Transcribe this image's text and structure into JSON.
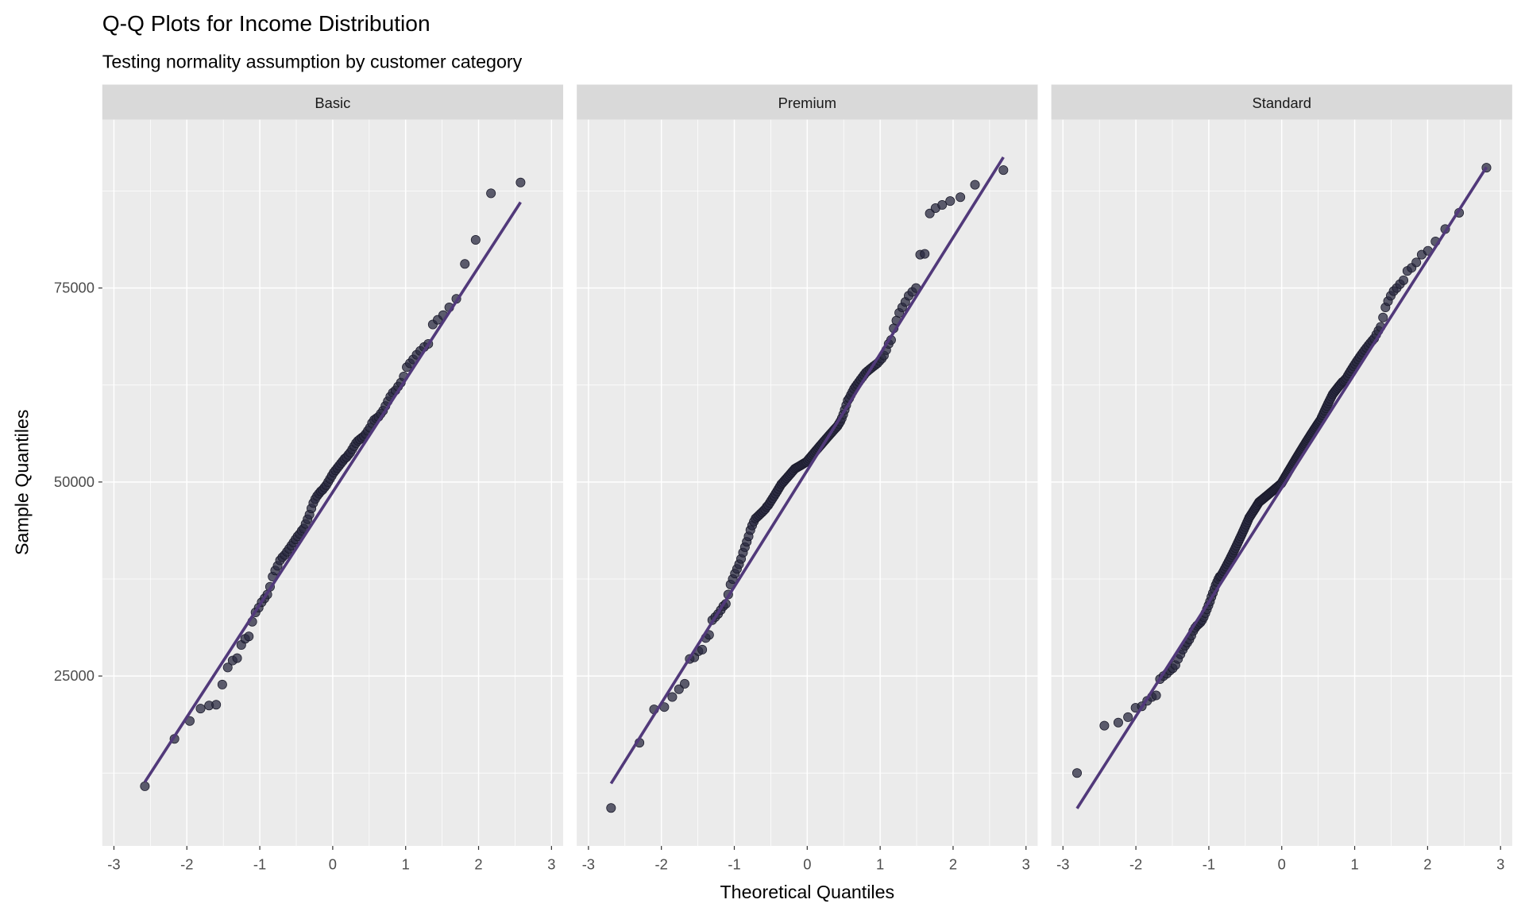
{
  "chart_data": {
    "type": "scatter",
    "title": "Q-Q Plots for Income Distribution",
    "subtitle": "Testing normality assumption by customer category",
    "xlabel": "Theoretical Quantiles",
    "ylabel": "Sample Quantiles",
    "xlim": [
      -3.16,
      3.16
    ],
    "ylim": [
      3100,
      96700
    ],
    "x_ticks": [
      -3,
      -2,
      -1,
      0,
      1,
      2,
      3
    ],
    "x_tick_labels": [
      "-3",
      "-2",
      "-1",
      "0",
      "1",
      "2",
      "3"
    ],
    "y_ticks": [
      25000,
      50000,
      75000
    ],
    "y_tick_labels": [
      "25000",
      "50000",
      "75000"
    ],
    "grid": true,
    "colors": {
      "panel_bg": "#EBEBEB",
      "strip_bg": "#D9D9D9",
      "grid": "#FFFFFF",
      "point": "#2A2A40",
      "line": "#51397A"
    },
    "facets": [
      {
        "name": "Basic",
        "line": {
          "intercept": 48700,
          "slope": 14500
        },
        "sample": [
          10800,
          16900,
          19200,
          20800,
          21200,
          21300,
          23900,
          26100,
          27000,
          27300,
          29000,
          29800,
          30100,
          32000,
          33200,
          33800,
          34500,
          35000,
          35500,
          36500,
          37800,
          38600,
          39200,
          39900,
          40300,
          40600,
          41000,
          41400,
          41800,
          42200,
          42600,
          43000,
          43300,
          43700,
          44000,
          44600,
          45200,
          45800,
          46600,
          47300,
          47800,
          48200,
          48500,
          48800,
          49000,
          49300,
          49600,
          50000,
          50400,
          50800,
          51200,
          51500,
          51800,
          52100,
          52400,
          52700,
          53000,
          53200,
          53500,
          53800,
          54200,
          54600,
          55000,
          55300,
          55500,
          55700,
          55900,
          56200,
          56600,
          57000,
          57600,
          58000,
          58200,
          58400,
          58800,
          59200,
          59800,
          60400,
          61000,
          61500,
          61800,
          62300,
          62800,
          63600,
          64800,
          65300,
          65800,
          66400,
          66900,
          67400,
          67800,
          70300,
          70900,
          71500,
          72500,
          73600,
          78100,
          81200,
          87200,
          88600
        ]
      },
      {
        "name": "Premium",
        "line": {
          "intercept": 51500,
          "slope": 15000
        },
        "sample": [
          8000,
          16400,
          20700,
          21000,
          22300,
          23300,
          24000,
          27200,
          27400,
          28200,
          28400,
          29900,
          30300,
          32200,
          32600,
          33000,
          33500,
          34000,
          34300,
          35500,
          36800,
          37500,
          38200,
          38800,
          39400,
          40100,
          40900,
          41600,
          42300,
          43000,
          43800,
          44400,
          44900,
          45300,
          45500,
          45700,
          45900,
          46100,
          46300,
          46500,
          46800,
          47000,
          47300,
          47600,
          47900,
          48200,
          48500,
          48800,
          49100,
          49400,
          49700,
          49900,
          50100,
          50300,
          50500,
          50700,
          50900,
          51100,
          51300,
          51500,
          51700,
          51800,
          51900,
          52000,
          52100,
          52200,
          52300,
          52400,
          52500,
          52600,
          52800,
          53000,
          53200,
          53400,
          53600,
          53800,
          54000,
          54200,
          54400,
          54600,
          54800,
          55000,
          55200,
          55400,
          55600,
          55800,
          56000,
          56200,
          56400,
          56600,
          56800,
          57000,
          57200,
          57500,
          57800,
          58200,
          58700,
          59300,
          59900,
          60500,
          60800,
          61200,
          61600,
          62000,
          62300,
          62600,
          62900,
          63200,
          63500,
          63800,
          64100,
          64300,
          64500,
          64700,
          64900,
          65100,
          65300,
          65600,
          65900,
          66300,
          67000,
          67800,
          68300,
          69800,
          70800,
          71800,
          72500,
          73200,
          74000,
          74500,
          75000,
          79300,
          79400,
          84600,
          85300,
          85700,
          86200,
          86700,
          88300,
          90200
        ]
      },
      {
        "name": "Standard",
        "line": {
          "intercept": 49250,
          "slope": 14720
        },
        "sample": [
          12500,
          18600,
          19000,
          19700,
          20900,
          21100,
          21800,
          22300,
          22500,
          24600,
          25000,
          25300,
          25700,
          26000,
          26400,
          27200,
          27800,
          28400,
          28900,
          29300,
          29700,
          30200,
          30800,
          31200,
          31500,
          31700,
          31900,
          32200,
          32600,
          33100,
          33600,
          34100,
          34600,
          35200,
          35700,
          36200,
          36700,
          37100,
          37500,
          37800,
          37900,
          38200,
          38500,
          38800,
          39100,
          39400,
          39700,
          40000,
          40300,
          40600,
          40900,
          41200,
          41500,
          41800,
          42100,
          42400,
          42700,
          43000,
          43300,
          43600,
          43900,
          44200,
          44500,
          44800,
          45100,
          45400,
          45600,
          45800,
          46000,
          46200,
          46400,
          46600,
          46800,
          47000,
          47200,
          47400,
          47500,
          47600,
          47700,
          47800,
          47900,
          48000,
          48100,
          48200,
          48300,
          48400,
          48500,
          48600,
          48700,
          48800,
          48900,
          49000,
          49100,
          49200,
          49300,
          49400,
          49500,
          49600,
          49700,
          49800,
          50000,
          50200,
          50400,
          50600,
          50800,
          51000,
          51200,
          51400,
          51600,
          51800,
          52000,
          52200,
          52400,
          52600,
          52800,
          53000,
          53200,
          53400,
          53600,
          53800,
          54000,
          54200,
          54400,
          54600,
          54800,
          55000,
          55200,
          55400,
          55600,
          55800,
          56000,
          56200,
          56400,
          56600,
          56800,
          57000,
          57200,
          57400,
          57600,
          57800,
          58000,
          58300,
          58600,
          58900,
          59200,
          59500,
          59800,
          60100,
          60400,
          60700,
          61000,
          61300,
          61500,
          61700,
          61900,
          62100,
          62300,
          62500,
          62700,
          62900,
          63000,
          63200,
          63400,
          63700,
          64000,
          64300,
          64600,
          64900,
          65200,
          65500,
          65800,
          66100,
          66400,
          66700,
          67000,
          67300,
          67600,
          67900,
          68200,
          68500,
          69000,
          69500,
          70000,
          71200,
          72500,
          73300,
          74000,
          74600,
          75000,
          75500,
          76000,
          77200,
          77600,
          78300,
          79300,
          79800,
          81000,
          82600,
          84700,
          90500
        ]
      }
    ]
  }
}
